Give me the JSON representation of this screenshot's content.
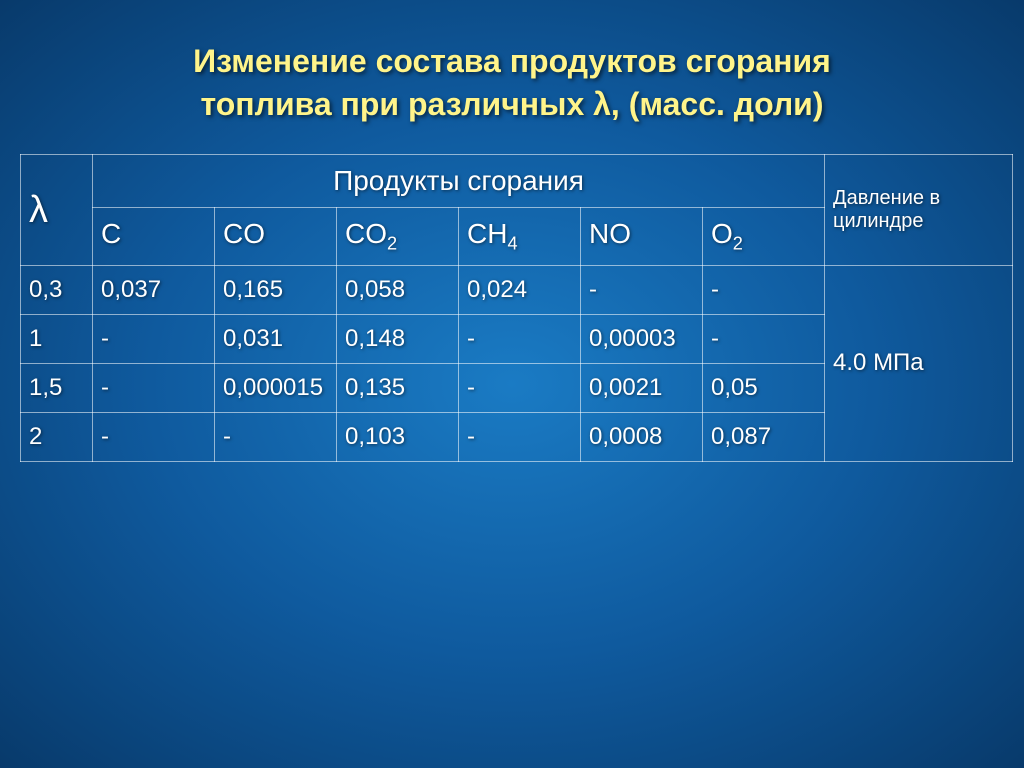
{
  "title_line1": "Изменение состава продуктов сгорания",
  "title_line2": "топлива при различных λ, (масс. доли)",
  "table": {
    "lambda_header": "λ",
    "products_group": "Продукты сгорания",
    "pressure_header": "Давление в цилиндре",
    "columns": {
      "c": {
        "main": "C",
        "sub": ""
      },
      "co": {
        "main": "CO",
        "sub": ""
      },
      "co2": {
        "main": "CO",
        "sub": "2"
      },
      "ch4": {
        "main": "CH",
        "sub": "4"
      },
      "no": {
        "main": "NO",
        "sub": ""
      },
      "o2": {
        "main": "O",
        "sub": "2"
      }
    },
    "rows": [
      {
        "lambda": "0,3",
        "c": "0,037",
        "co": "0,165",
        "co2": "0,058",
        "ch4": "0,024",
        "no": "-",
        "o2": "-"
      },
      {
        "lambda": "1",
        "c": "-",
        "co": "0,031",
        "co2": "0,148",
        "ch4": "-",
        "no": "0,00003",
        "o2": "-"
      },
      {
        "lambda": "1,5",
        "c": "-",
        "co": "0,000015",
        "co2": "0,135",
        "ch4": "-",
        "no": "0,0021",
        "o2": "0,05"
      },
      {
        "lambda": "2",
        "c": "-",
        "co": "-",
        "co2": "0,103",
        "ch4": "-",
        "no": "0,0008",
        "o2": "0,087"
      }
    ],
    "pressure_value": "4.0 МПа"
  },
  "style": {
    "background_gradient": {
      "inner": "#1a7bc4",
      "mid": "#0f5a9e",
      "outer": "#083a6b"
    },
    "title_color": "#fff48a",
    "text_color": "#ffffff",
    "border_color": "rgba(255,255,255,0.55)",
    "title_fontsize": 32,
    "header_fontsize": 28,
    "cell_fontsize": 24,
    "lambda_fontsize": 38,
    "pressure_header_fontsize": 20,
    "col_widths": {
      "lambda": 72,
      "product": 122,
      "pressure": 188
    }
  }
}
